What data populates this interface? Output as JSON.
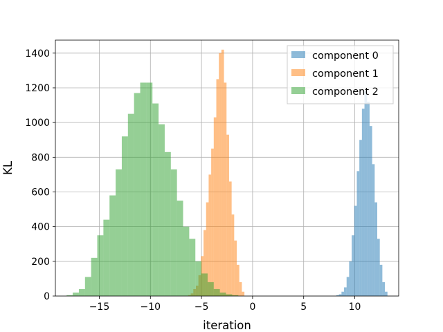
{
  "chart_data": {
    "type": "bar",
    "title": "",
    "xlabel": "iteration",
    "ylabel": "KL",
    "xlim": [
      -19.3,
      14.3
    ],
    "ylim": [
      0,
      1475
    ],
    "xticks": [
      -15,
      -10,
      -5,
      0,
      5,
      10
    ],
    "xtick_labels": [
      "−15",
      "−10",
      "−5",
      "0",
      "5",
      "10"
    ],
    "yticks": [
      0,
      200,
      400,
      600,
      800,
      1000,
      1200,
      1400
    ],
    "ytick_labels": [
      "0",
      "200",
      "400",
      "600",
      "800",
      "1000",
      "1200",
      "1400"
    ],
    "grid": true,
    "legend_position": "top-right",
    "series": [
      {
        "name": "component 0",
        "color": "#1f77b4",
        "opacity": 0.5,
        "bin_start": 8.2,
        "bin_width": 0.25,
        "counts": [
          5,
          10,
          25,
          50,
          110,
          200,
          350,
          520,
          720,
          900,
          1080,
          1180,
          1120,
          980,
          760,
          540,
          330,
          180,
          80,
          25
        ]
      },
      {
        "name": "component 1",
        "color": "#ff7f0e",
        "opacity": 0.5,
        "bin_start": -6.3,
        "bin_width": 0.25,
        "counts": [
          5,
          15,
          40,
          60,
          120,
          230,
          380,
          540,
          700,
          850,
          1030,
          1250,
          1400,
          1420,
          1230,
          930,
          660,
          470,
          320,
          180,
          80,
          25
        ]
      },
      {
        "name": "component 2",
        "color": "#2ca02c",
        "opacity": 0.5,
        "bin_start": -18.2,
        "bin_width": 0.6,
        "counts": [
          5,
          20,
          40,
          110,
          220,
          350,
          440,
          580,
          730,
          920,
          1050,
          1170,
          1230,
          1230,
          1110,
          990,
          830,
          730,
          550,
          400,
          330,
          200,
          130,
          80,
          40,
          20,
          10,
          5
        ]
      }
    ]
  }
}
